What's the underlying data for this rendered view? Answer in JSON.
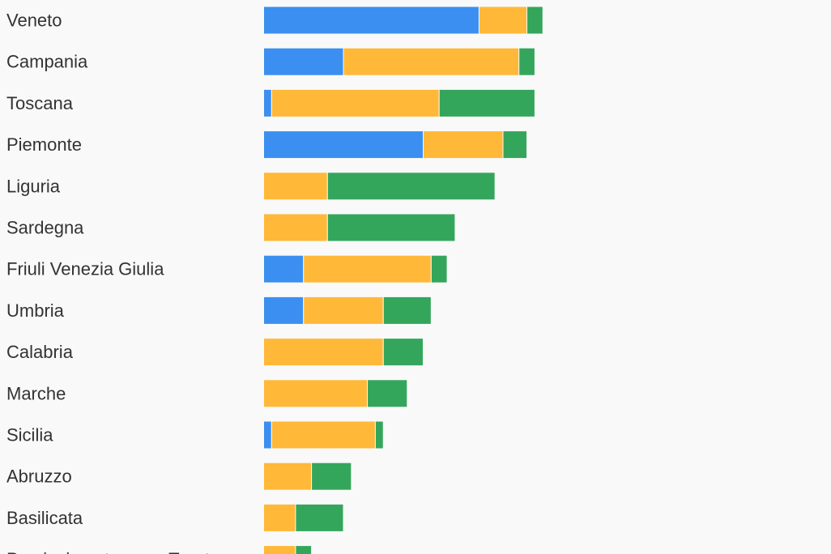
{
  "chart_data": {
    "type": "bar",
    "orientation": "horizontal",
    "stacked": true,
    "title": "",
    "xlabel": "",
    "ylabel": "",
    "xlim": [
      0,
      35
    ],
    "grid": false,
    "legend": "none",
    "categories": [
      "Veneto",
      "Campania",
      "Toscana",
      "Piemonte",
      "Liguria",
      "Sardegna",
      "Friuli Venezia Giulia",
      "Umbria",
      "Calabria",
      "Marche",
      "Sicilia",
      "Abruzzo",
      "Basilicata",
      "Provincia autonoma Trento"
    ],
    "series": [
      {
        "color": "#3b8ff0",
        "values": [
          27,
          10,
          1,
          20,
          0,
          0,
          5,
          5,
          0,
          0,
          1,
          0,
          0,
          0
        ]
      },
      {
        "color": "#ffb838",
        "values": [
          6,
          22,
          21,
          10,
          8,
          8,
          16,
          10,
          15,
          13,
          13,
          6,
          4,
          4
        ]
      },
      {
        "color": "#34a65c",
        "values": [
          2,
          2,
          12,
          3,
          21,
          16,
          2,
          6,
          5,
          5,
          1,
          5,
          6,
          2
        ]
      }
    ]
  }
}
